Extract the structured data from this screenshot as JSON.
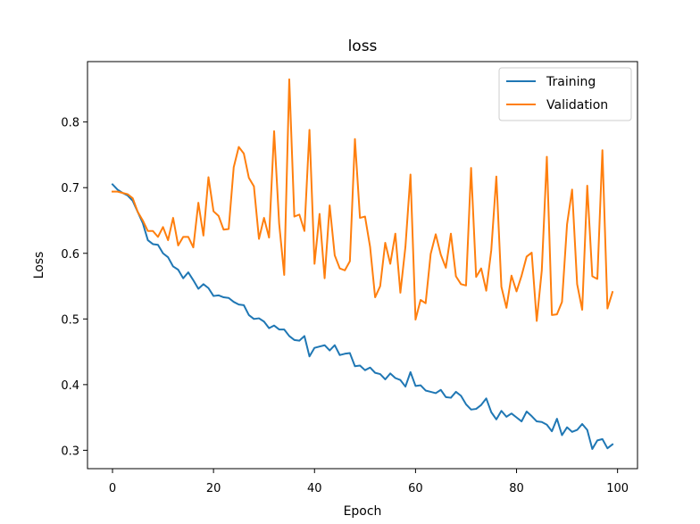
{
  "chart_data": {
    "type": "line",
    "title": "loss",
    "xlabel": "Epoch",
    "ylabel": "Loss",
    "xlim": [
      -4.95,
      103.95
    ],
    "ylim": [
      0.272,
      0.892
    ],
    "xticks": [
      0,
      20,
      40,
      60,
      80,
      100
    ],
    "yticks": [
      0.3,
      0.4,
      0.5,
      0.6,
      0.7,
      0.8
    ],
    "xtick_labels": [
      "0",
      "20",
      "40",
      "60",
      "80",
      "100"
    ],
    "ytick_labels": [
      "0.3",
      "0.4",
      "0.5",
      "0.6",
      "0.7",
      "0.8"
    ],
    "legend_position": "top-right",
    "grid": false,
    "series": [
      {
        "name": "Training",
        "color": "#1f77b4",
        "values": [
          0.705,
          0.697,
          0.692,
          0.688,
          0.68,
          0.663,
          0.646,
          0.62,
          0.614,
          0.613,
          0.6,
          0.594,
          0.58,
          0.575,
          0.562,
          0.571,
          0.559,
          0.546,
          0.553,
          0.547,
          0.535,
          0.536,
          0.533,
          0.532,
          0.526,
          0.522,
          0.521,
          0.506,
          0.5,
          0.501,
          0.496,
          0.486,
          0.49,
          0.484,
          0.484,
          0.474,
          0.468,
          0.467,
          0.474,
          0.443,
          0.456,
          0.458,
          0.46,
          0.452,
          0.46,
          0.445,
          0.447,
          0.448,
          0.428,
          0.429,
          0.422,
          0.426,
          0.418,
          0.416,
          0.408,
          0.417,
          0.41,
          0.407,
          0.397,
          0.419,
          0.398,
          0.399,
          0.391,
          0.389,
          0.387,
          0.392,
          0.381,
          0.38,
          0.389,
          0.383,
          0.37,
          0.362,
          0.363,
          0.369,
          0.379,
          0.358,
          0.347,
          0.36,
          0.351,
          0.356,
          0.35,
          0.344,
          0.359,
          0.352,
          0.344,
          0.343,
          0.339,
          0.329,
          0.348,
          0.323,
          0.335,
          0.328,
          0.331,
          0.34,
          0.331,
          0.302,
          0.315,
          0.317,
          0.303,
          0.309
        ]
      },
      {
        "name": "Validation",
        "color": "#ff7f0e",
        "values": [
          0.694,
          0.694,
          0.692,
          0.69,
          0.684,
          0.663,
          0.65,
          0.634,
          0.634,
          0.625,
          0.64,
          0.62,
          0.654,
          0.612,
          0.625,
          0.625,
          0.609,
          0.677,
          0.627,
          0.716,
          0.664,
          0.657,
          0.636,
          0.637,
          0.731,
          0.762,
          0.752,
          0.715,
          0.702,
          0.622,
          0.654,
          0.624,
          0.786,
          0.645,
          0.567,
          0.865,
          0.656,
          0.659,
          0.634,
          0.788,
          0.584,
          0.66,
          0.562,
          0.673,
          0.597,
          0.577,
          0.574,
          0.588,
          0.774,
          0.654,
          0.656,
          0.61,
          0.533,
          0.55,
          0.616,
          0.584,
          0.63,
          0.54,
          0.61,
          0.72,
          0.499,
          0.529,
          0.524,
          0.599,
          0.629,
          0.598,
          0.578,
          0.63,
          0.565,
          0.553,
          0.551,
          0.73,
          0.564,
          0.577,
          0.543,
          0.605,
          0.717,
          0.549,
          0.517,
          0.566,
          0.542,
          0.566,
          0.595,
          0.601,
          0.497,
          0.574,
          0.747,
          0.506,
          0.507,
          0.526,
          0.644,
          0.697,
          0.553,
          0.514,
          0.703,
          0.565,
          0.561,
          0.757,
          0.516,
          0.541
        ]
      }
    ]
  }
}
